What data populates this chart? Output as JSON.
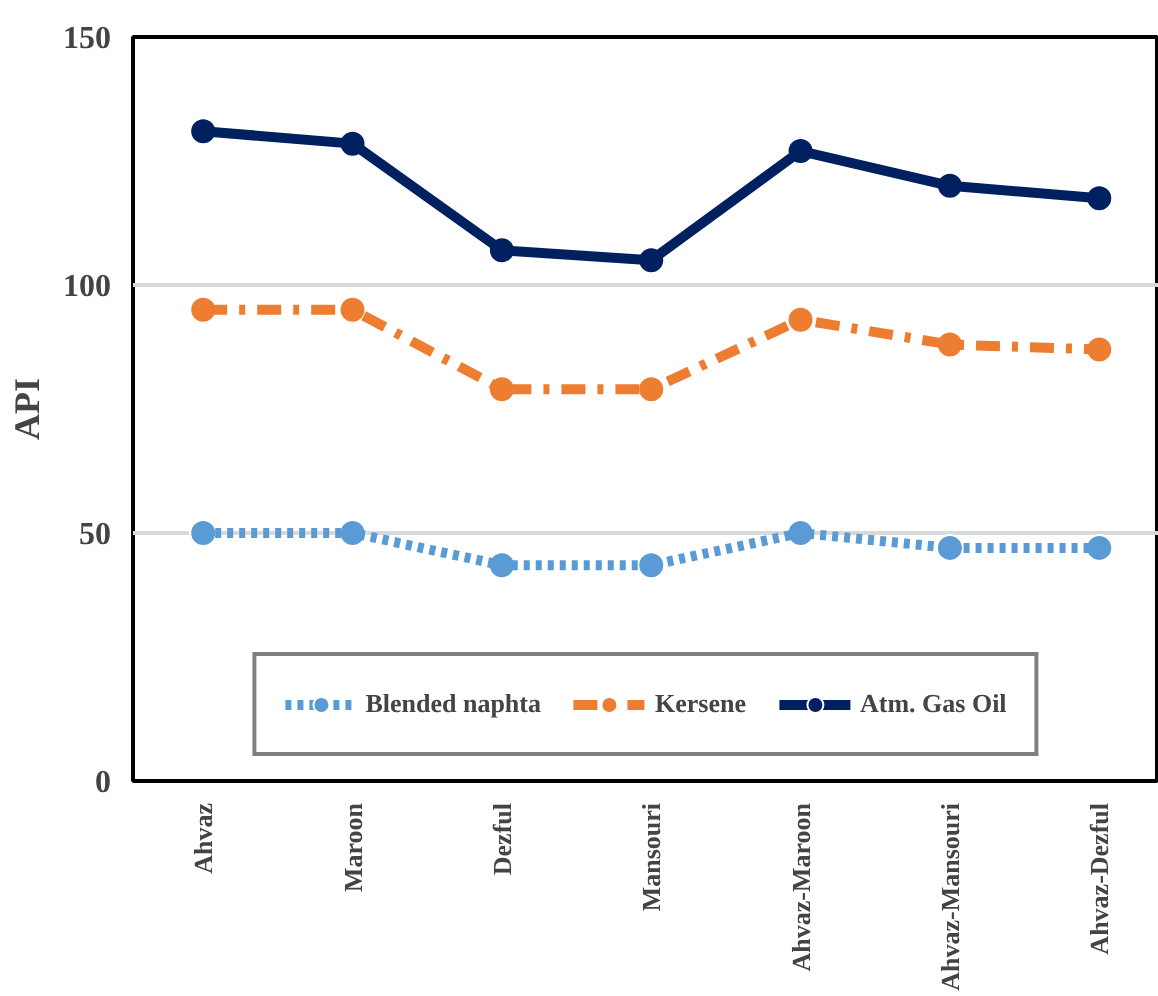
{
  "chart_data": {
    "type": "line",
    "ylabel": "API",
    "categories": [
      "Ahvaz",
      "Maroon",
      "Dezful",
      "Mansouri",
      "Ahvaz-Maroon",
      "Ahvaz-Mansouri",
      "Ahvaz-Dezful"
    ],
    "series": [
      {
        "name": "Blended naphta",
        "color": "#5b9bd5",
        "line_style": "dotted",
        "values": [
          50,
          50,
          43.5,
          43.5,
          50,
          47,
          47
        ]
      },
      {
        "name": "Kersene",
        "color": "#ed7d31",
        "line_style": "dashed",
        "values": [
          95,
          95,
          79,
          79,
          93,
          88,
          87
        ]
      },
      {
        "name": "Atm. Gas Oil",
        "color": "#002060",
        "line_style": "solid",
        "values": [
          131,
          128.5,
          107,
          105,
          127,
          120,
          117.5
        ]
      }
    ],
    "ylim": [
      0,
      150
    ],
    "yticks": [
      0,
      50,
      100,
      150
    ],
    "grid": "y",
    "legend": "bottom",
    "marker": "circle"
  }
}
